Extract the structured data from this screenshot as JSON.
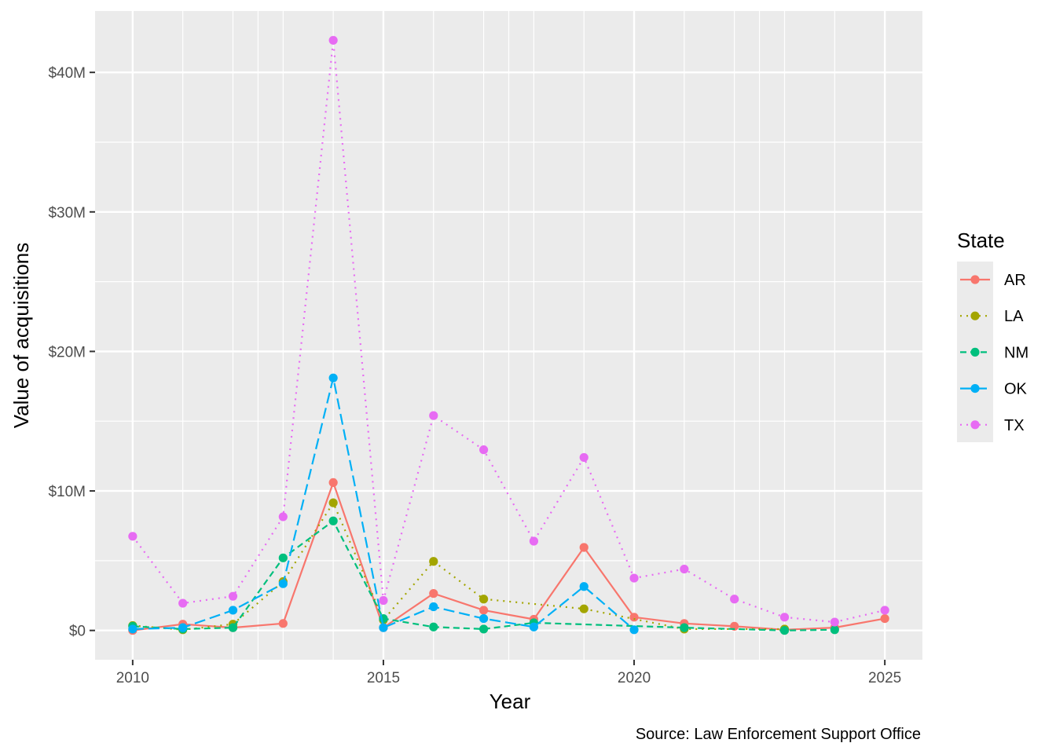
{
  "chart_data": {
    "type": "line",
    "xlabel": "Year",
    "ylabel": "Value of acquisitions",
    "caption": "Source: Law Enforcement Support Office",
    "xlim": [
      2009.25,
      2025.75
    ],
    "ylim": [
      -2100000,
      44400000
    ],
    "x_ticks": [
      2010,
      2015,
      2020,
      2025
    ],
    "x_tick_labels": [
      "2010",
      "2015",
      "2020",
      "2025"
    ],
    "y_ticks": [
      0,
      10000000,
      20000000,
      30000000,
      40000000
    ],
    "y_tick_labels": [
      "$0",
      "$10M",
      "$20M",
      "$30M",
      "$40M"
    ],
    "grid": true,
    "legend": {
      "title": "State",
      "position": "right",
      "entries": [
        "AR",
        "LA",
        "NM",
        "OK",
        "TX"
      ]
    },
    "series": [
      {
        "name": "AR",
        "color": "#F8766D",
        "linestyle": "solid",
        "points": [
          [
            2010,
            0
          ],
          [
            2011,
            450000
          ],
          [
            2012,
            200000
          ],
          [
            2013,
            500000
          ],
          [
            2014,
            10600000
          ],
          [
            2015,
            200000
          ],
          [
            2016,
            2650000
          ],
          [
            2017,
            1450000
          ],
          [
            2018,
            800000
          ],
          [
            2019,
            5950000
          ],
          [
            2020,
            950000
          ],
          [
            2021,
            500000
          ],
          [
            2022,
            300000
          ],
          [
            2023,
            50000
          ],
          [
            2024,
            200000
          ],
          [
            2025,
            850000
          ]
        ]
      },
      {
        "name": "LA",
        "color": "#A3A500",
        "linestyle": "dotted",
        "points": [
          [
            2010,
            350000
          ],
          [
            2011,
            50000
          ],
          [
            2012,
            450000
          ],
          [
            2013,
            3500000
          ],
          [
            2014,
            9150000
          ],
          [
            2015,
            750000
          ],
          [
            2016,
            4950000
          ],
          [
            2017,
            2250000
          ],
          [
            2019,
            1550000
          ],
          [
            2021,
            100000
          ],
          [
            2023,
            100000
          ]
        ]
      },
      {
        "name": "NM",
        "color": "#00BF7D",
        "linestyle": "dashed",
        "points": [
          [
            2010,
            300000
          ],
          [
            2011,
            100000
          ],
          [
            2012,
            200000
          ],
          [
            2013,
            5200000
          ],
          [
            2014,
            7850000
          ],
          [
            2015,
            850000
          ],
          [
            2016,
            250000
          ],
          [
            2017,
            100000
          ],
          [
            2018,
            550000
          ],
          [
            2021,
            200000
          ],
          [
            2023,
            0
          ],
          [
            2024,
            50000
          ]
        ]
      },
      {
        "name": "OK",
        "color": "#00B0F6",
        "linestyle": "longdash",
        "points": [
          [
            2010,
            100000
          ],
          [
            2011,
            200000
          ],
          [
            2012,
            1450000
          ],
          [
            2013,
            3350000
          ],
          [
            2014,
            18100000
          ],
          [
            2015,
            200000
          ],
          [
            2016,
            1700000
          ],
          [
            2017,
            850000
          ],
          [
            2018,
            250000
          ],
          [
            2019,
            3150000
          ],
          [
            2020,
            50000
          ]
        ]
      },
      {
        "name": "TX",
        "color": "#E76BF3",
        "linestyle": "dotted",
        "points": [
          [
            2010,
            6750000
          ],
          [
            2011,
            1950000
          ],
          [
            2012,
            2450000
          ],
          [
            2013,
            8150000
          ],
          [
            2014,
            42300000
          ],
          [
            2015,
            2150000
          ],
          [
            2016,
            15400000
          ],
          [
            2017,
            12950000
          ],
          [
            2018,
            6400000
          ],
          [
            2019,
            12400000
          ],
          [
            2020,
            3750000
          ],
          [
            2021,
            4400000
          ],
          [
            2022,
            2250000
          ],
          [
            2023,
            950000
          ],
          [
            2024,
            600000
          ],
          [
            2025,
            1450000
          ]
        ]
      }
    ]
  }
}
